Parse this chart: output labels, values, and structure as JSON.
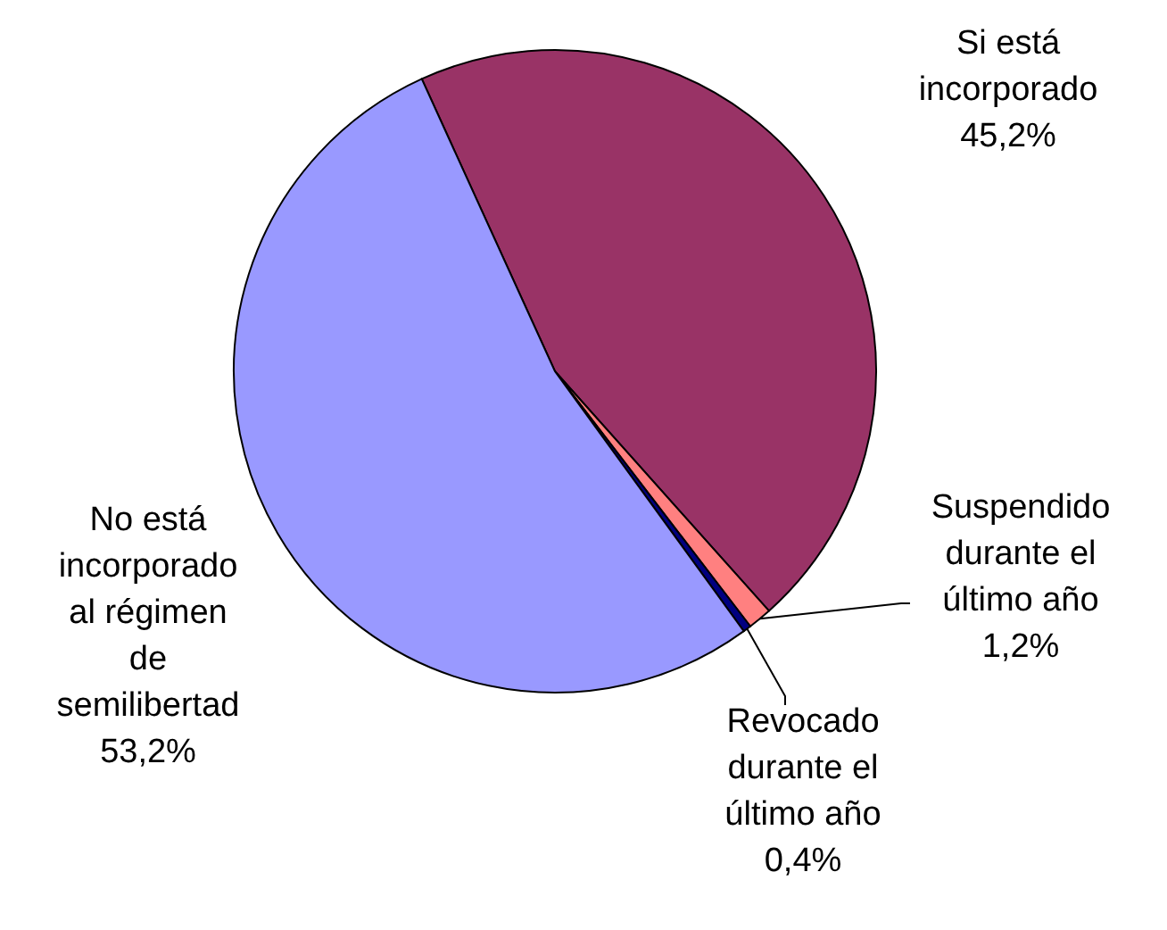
{
  "chart_data": {
    "type": "pie",
    "categories": [
      "Si está incorporado",
      "Suspendido durante el último año",
      "Revocado durante el último año",
      "No está incorporado al régimen de semilibertad"
    ],
    "values": [
      45.2,
      1.2,
      0.4,
      53.2
    ],
    "colors": [
      "#993366",
      "#ff8080",
      "#000080",
      "#9999ff"
    ],
    "value_labels": [
      "45,2%",
      "1,2%",
      "0,4%",
      "53,2%"
    ]
  }
}
